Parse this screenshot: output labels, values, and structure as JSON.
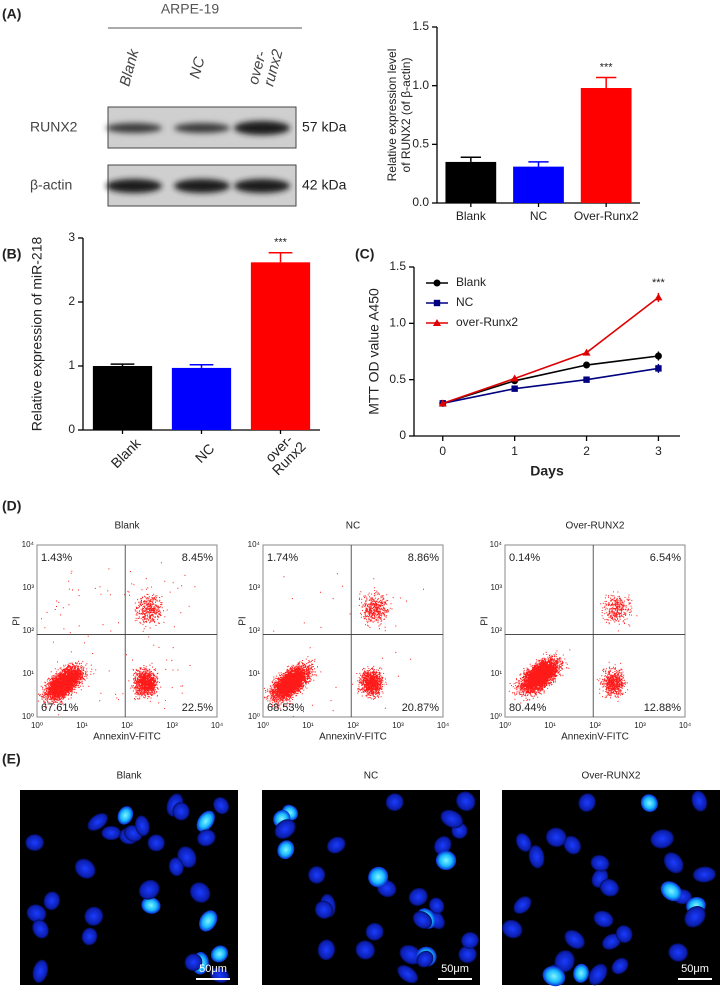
{
  "panel_labels": [
    "(A)",
    "(B)",
    "(C)",
    "(D)",
    "(E)"
  ],
  "blot": {
    "cell_line": "ARPE-19",
    "lanes": [
      [
        "Blank"
      ],
      [
        "NC"
      ],
      [
        "over-",
        "runx2"
      ]
    ],
    "rows": [
      {
        "protein": "RUNX2",
        "size": "57 kDa"
      },
      {
        "protein": "β-actin",
        "size": "42 kDa"
      }
    ]
  },
  "chart_data": [
    {
      "type": "bar",
      "ylabel": "Relative expression level\nof RUNX2 (of β-actin)",
      "categories": [
        "Blank",
        "NC",
        "Over-Runx2"
      ],
      "values": [
        0.35,
        0.31,
        0.98
      ],
      "errors": [
        0.04,
        0.04,
        0.09
      ],
      "colors": [
        "#000000",
        "#0000ff",
        "#ff0000"
      ],
      "ylim": [
        0,
        1.5
      ],
      "yticks": [
        {
          "value": 0,
          "label": "0.0"
        },
        {
          "value": 0.5,
          "label": "0.5"
        },
        {
          "value": 1,
          "label": "1.0"
        },
        {
          "value": 1.5,
          "label": "1.5"
        }
      ],
      "annotation": "***"
    },
    {
      "type": "bar",
      "ylabel": "Relative expression of miR-218",
      "categories": [
        "Blank",
        "NC",
        "over-\nRunx2"
      ],
      "values": [
        1.0,
        0.97,
        2.62
      ],
      "errors": [
        0.03,
        0.05,
        0.15
      ],
      "colors": [
        "#000000",
        "#0000ff",
        "#ff0000"
      ],
      "ylim": [
        0,
        3
      ],
      "yticks": [
        0,
        1,
        2,
        3
      ],
      "annotation": "***",
      "rotate_labels": true
    },
    {
      "type": "line",
      "xlabel": "Days",
      "ylabel": "MTT OD value A450",
      "x": [
        0,
        1,
        2,
        3
      ],
      "xlim": [
        -0.4,
        3.3
      ],
      "xticks": [
        0,
        1,
        2,
        3
      ],
      "ylim": [
        0,
        1.5
      ],
      "yticks": [
        0,
        {
          "value": 0.5,
          "label": "0.5"
        },
        {
          "value": 1,
          "label": "1.0"
        },
        {
          "value": 1.5,
          "label": "1.5"
        }
      ],
      "series": [
        {
          "name": "Blank",
          "color": "#000000",
          "marker": "circle",
          "values": [
            0.29,
            0.49,
            0.63,
            0.71
          ],
          "errors": [
            0.01,
            0.02,
            0.02,
            0.04
          ]
        },
        {
          "name": "NC",
          "color": "#000080",
          "marker": "square",
          "values": [
            0.29,
            0.42,
            0.5,
            0.6
          ],
          "errors": [
            0.01,
            0.02,
            0.02,
            0.04
          ]
        },
        {
          "name": "over-Runx2",
          "color": "#e00000",
          "marker": "triangle",
          "values": [
            0.29,
            0.51,
            0.74,
            1.23
          ],
          "errors": [
            0.01,
            0.02,
            0.02,
            0.04
          ]
        }
      ],
      "legend": "upper left",
      "annotation": "***"
    }
  ],
  "flow": {
    "x_label": "AnnexinV-FITC",
    "y_label": "PI",
    "ticks": [
      "10⁰",
      "10¹",
      "10²",
      "10³",
      "10⁴"
    ],
    "plots": [
      {
        "title": "Blank",
        "quadrants": [
          "1.43%",
          "8.45%",
          "67.61%",
          "22.5%"
        ]
      },
      {
        "title": "NC",
        "quadrants": [
          "1.74%",
          "8.86%",
          "68.53%",
          "20.87%"
        ]
      },
      {
        "title": "Over-RUNX2",
        "quadrants": [
          "0.14%",
          "6.54%",
          "80.44%",
          "12.88%"
        ]
      }
    ]
  },
  "micrographs": {
    "titles": [
      "Blank",
      "NC",
      "Over-RUNX2"
    ],
    "scale_bar": "50μm"
  }
}
